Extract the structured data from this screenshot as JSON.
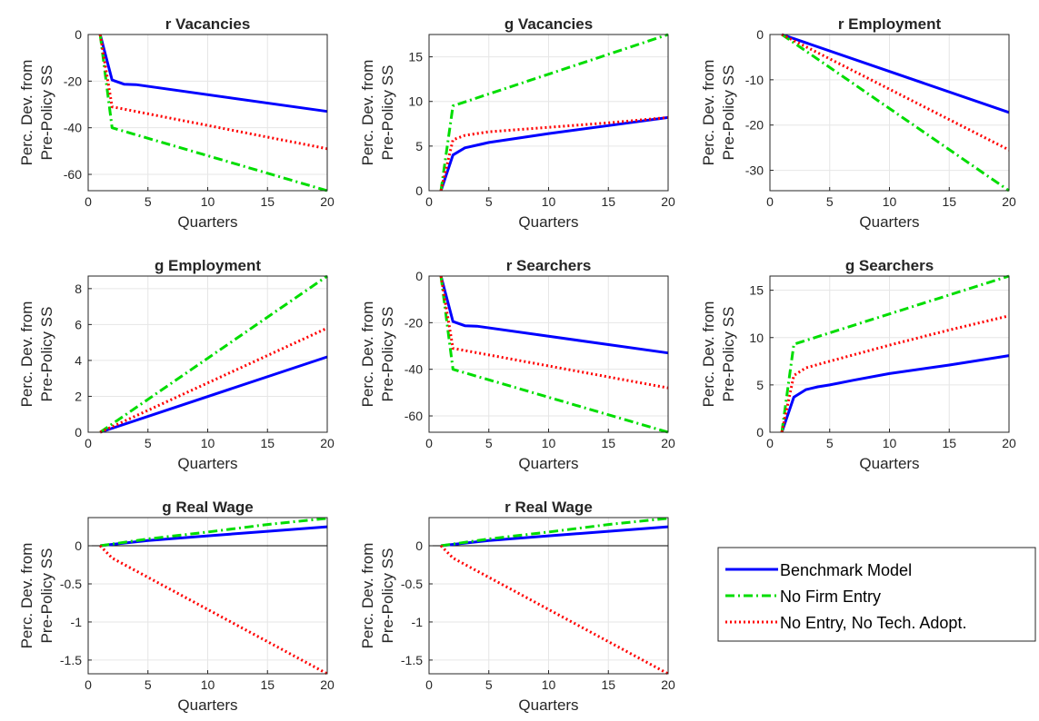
{
  "chart_data": [
    {
      "type": "line",
      "title": "r Vacancies",
      "xlabel": "Quarters",
      "ylabel": [
        "Perc. Dev. from",
        "Pre-Policy SS"
      ],
      "xlim": [
        0,
        20
      ],
      "ylim": [
        -67,
        0
      ],
      "xticks": [
        0,
        5,
        10,
        15,
        20
      ],
      "yticks": [
        0,
        -20,
        -40,
        -60
      ],
      "grid": true,
      "series": [
        {
          "name": "Benchmark Model",
          "x": [
            1,
            2,
            3,
            4,
            20
          ],
          "y": [
            0,
            -19.5,
            -21.3,
            -21.5,
            -33
          ]
        },
        {
          "name": "No Firm Entry",
          "x": [
            1,
            2,
            20
          ],
          "y": [
            0,
            -40,
            -67
          ]
        },
        {
          "name": "No Entry, No Tech. Adopt.",
          "x": [
            1,
            2,
            20
          ],
          "y": [
            0,
            -31,
            -49
          ]
        }
      ]
    },
    {
      "type": "line",
      "title": "g Vacancies",
      "xlabel": "Quarters",
      "ylabel": [
        "Perc. Dev. from",
        "Pre-Policy SS"
      ],
      "xlim": [
        0,
        20
      ],
      "ylim": [
        0,
        17.5
      ],
      "xticks": [
        0,
        5,
        10,
        15,
        20
      ],
      "yticks": [
        0,
        5,
        10,
        15
      ],
      "grid": true,
      "series": [
        {
          "name": "Benchmark Model",
          "x": [
            1,
            2,
            3,
            4,
            5,
            7,
            10,
            15,
            20
          ],
          "y": [
            0,
            4,
            4.8,
            5.1,
            5.4,
            5.8,
            6.4,
            7.3,
            8.2
          ]
        },
        {
          "name": "No Firm Entry",
          "x": [
            1,
            2,
            20
          ],
          "y": [
            0,
            9.5,
            17.5
          ]
        },
        {
          "name": "No Entry, No Tech. Adopt.",
          "x": [
            1,
            2,
            3,
            5,
            10,
            15,
            20
          ],
          "y": [
            0,
            5.7,
            6.2,
            6.6,
            7.1,
            7.6,
            8.2
          ]
        }
      ]
    },
    {
      "type": "line",
      "title": "r Employment",
      "xlabel": "Quarters",
      "ylabel": [
        "Perc. Dev. from",
        "Pre-Policy SS"
      ],
      "xlim": [
        0,
        20
      ],
      "ylim": [
        -34.5,
        0
      ],
      "xticks": [
        0,
        5,
        10,
        15,
        20
      ],
      "yticks": [
        0,
        -10,
        -20,
        -30
      ],
      "grid": true,
      "series": [
        {
          "name": "Benchmark Model",
          "x": [
            1,
            20
          ],
          "y": [
            0,
            -17.2
          ]
        },
        {
          "name": "No Firm Entry",
          "x": [
            1,
            20
          ],
          "y": [
            0,
            -34.5
          ]
        },
        {
          "name": "No Entry, No Tech. Adopt.",
          "x": [
            1,
            20
          ],
          "y": [
            0,
            -25.5
          ]
        }
      ]
    },
    {
      "type": "line",
      "title": "g Employment",
      "xlabel": "Quarters",
      "ylabel": [
        "Perc. Dev. from",
        "Pre-Policy SS"
      ],
      "xlim": [
        0,
        20
      ],
      "ylim": [
        0,
        8.7
      ],
      "xticks": [
        0,
        5,
        10,
        15,
        20
      ],
      "yticks": [
        0,
        2,
        4,
        6,
        8
      ],
      "grid": true,
      "series": [
        {
          "name": "Benchmark Model",
          "x": [
            1,
            20
          ],
          "y": [
            0,
            4.2
          ]
        },
        {
          "name": "No Firm Entry",
          "x": [
            1,
            20
          ],
          "y": [
            0,
            8.7
          ]
        },
        {
          "name": "No Entry, No Tech. Adopt.",
          "x": [
            1,
            20
          ],
          "y": [
            0,
            5.8
          ]
        }
      ]
    },
    {
      "type": "line",
      "title": "r Searchers",
      "xlabel": "Quarters",
      "ylabel": [
        "Perc. Dev. from",
        "Pre-Policy SS"
      ],
      "xlim": [
        0,
        20
      ],
      "ylim": [
        -67,
        0
      ],
      "xticks": [
        0,
        5,
        10,
        15,
        20
      ],
      "yticks": [
        0,
        -20,
        -40,
        -60
      ],
      "grid": true,
      "series": [
        {
          "name": "Benchmark Model",
          "x": [
            1,
            2,
            3,
            4,
            20
          ],
          "y": [
            0,
            -19.5,
            -21.3,
            -21.5,
            -33
          ]
        },
        {
          "name": "No Firm Entry",
          "x": [
            1,
            2,
            20
          ],
          "y": [
            0,
            -40,
            -67
          ]
        },
        {
          "name": "No Entry, No Tech. Adopt.",
          "x": [
            1,
            2,
            20
          ],
          "y": [
            0,
            -31,
            -48
          ]
        }
      ]
    },
    {
      "type": "line",
      "title": "g Searchers",
      "xlabel": "Quarters",
      "ylabel": [
        "Perc. Dev. from",
        "Pre-Policy SS"
      ],
      "xlim": [
        0,
        20
      ],
      "ylim": [
        0,
        16.5
      ],
      "xticks": [
        0,
        5,
        10,
        15,
        20
      ],
      "yticks": [
        0,
        5,
        10,
        15
      ],
      "grid": true,
      "series": [
        {
          "name": "Benchmark Model",
          "x": [
            1,
            2,
            3,
            4,
            5,
            7,
            10,
            15,
            20
          ],
          "y": [
            0,
            3.7,
            4.5,
            4.8,
            5.0,
            5.5,
            6.2,
            7.1,
            8.1
          ]
        },
        {
          "name": "No Firm Entry",
          "x": [
            1,
            2,
            20
          ],
          "y": [
            0,
            9.3,
            16.5
          ]
        },
        {
          "name": "No Entry, No Tech. Adopt.",
          "x": [
            1,
            2,
            3,
            5,
            10,
            15,
            20
          ],
          "y": [
            0,
            6.0,
            6.8,
            7.5,
            9.2,
            10.8,
            12.3
          ]
        }
      ]
    },
    {
      "type": "line",
      "title": "g Real Wage",
      "xlabel": "Quarters",
      "ylabel": [
        "Perc. Dev. from",
        "Pre-Policy SS"
      ],
      "xlim": [
        0,
        20
      ],
      "ylim": [
        -1.68,
        0.37
      ],
      "xticks": [
        0,
        5,
        10,
        15,
        20
      ],
      "yticks": [
        0,
        -0.5,
        -1,
        -1.5
      ],
      "grid": true,
      "zero_line": true,
      "series": [
        {
          "name": "Benchmark Model",
          "x": [
            1,
            5,
            10,
            15,
            20
          ],
          "y": [
            0,
            0.07,
            0.13,
            0.19,
            0.25
          ]
        },
        {
          "name": "No Firm Entry",
          "x": [
            1,
            5,
            10,
            15,
            20
          ],
          "y": [
            0,
            0.09,
            0.18,
            0.28,
            0.36
          ]
        },
        {
          "name": "No Entry, No Tech. Adopt.",
          "x": [
            1,
            2,
            20
          ],
          "y": [
            0,
            -0.16,
            -1.68
          ]
        }
      ]
    },
    {
      "type": "line",
      "title": "r Real Wage",
      "xlabel": "Quarters",
      "ylabel": [
        "Perc. Dev. from",
        "Pre-Policy SS"
      ],
      "xlim": [
        0,
        20
      ],
      "ylim": [
        -1.68,
        0.37
      ],
      "xticks": [
        0,
        5,
        10,
        15,
        20
      ],
      "yticks": [
        0,
        -0.5,
        -1,
        -1.5
      ],
      "grid": true,
      "zero_line": true,
      "series": [
        {
          "name": "Benchmark Model",
          "x": [
            1,
            5,
            10,
            15,
            20
          ],
          "y": [
            0,
            0.07,
            0.13,
            0.19,
            0.25
          ]
        },
        {
          "name": "No Firm Entry",
          "x": [
            1,
            5,
            10,
            15,
            20
          ],
          "y": [
            0,
            0.09,
            0.18,
            0.28,
            0.36
          ]
        },
        {
          "name": "No Entry, No Tech. Adopt.",
          "x": [
            1,
            2,
            20
          ],
          "y": [
            0,
            -0.16,
            -1.68
          ]
        }
      ]
    }
  ],
  "legend": {
    "placement": "bottom-right",
    "entries": [
      {
        "name": "Benchmark Model",
        "color": "#0000ff",
        "style": "solid"
      },
      {
        "name": "No Firm Entry",
        "color": "#00dd00",
        "style": "dashdot"
      },
      {
        "name": "No Entry, No Tech. Adopt.",
        "color": "#ff0000",
        "style": "dotted"
      }
    ]
  },
  "colors": {
    "benchmark": "#0000ff",
    "no_entry": "#00dd00",
    "no_entry_no_tech": "#ff0000",
    "grid": "#e6e6e6",
    "axis": "#262626"
  }
}
